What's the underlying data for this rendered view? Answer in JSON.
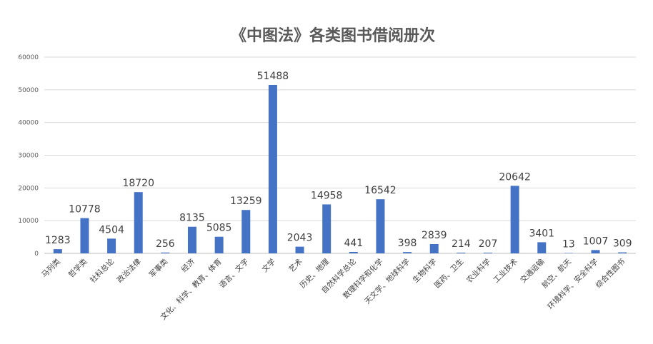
{
  "chart_data": {
    "type": "bar",
    "title": "《中图法》各类图书借阅册次",
    "xlabel": "",
    "ylabel": "",
    "ylim": [
      0,
      60000
    ],
    "yticks": [
      0,
      10000,
      20000,
      30000,
      40000,
      50000,
      60000
    ],
    "grid": true,
    "legend": "none",
    "bar_color": "#4472c4",
    "categories": [
      "马列类",
      "哲学类",
      "社科总论",
      "政治法律",
      "军事类",
      "经济",
      "文化、科学、教育、体育",
      "语言、文字",
      "文学",
      "艺术",
      "历史、地理",
      "自然科学总论",
      "数理科学和化学",
      "天文学、地球科学",
      "生物科学",
      "医药、卫生",
      "农业科学",
      "工业技术",
      "交通运输",
      "航空、航天",
      "环境科学、安全科学",
      "综合性图书"
    ],
    "values": [
      1283,
      10778,
      4504,
      18720,
      256,
      8135,
      5085,
      13259,
      51488,
      2043,
      14958,
      441,
      16542,
      398,
      2839,
      214,
      207,
      20642,
      3401,
      13,
      1007,
      309
    ]
  }
}
